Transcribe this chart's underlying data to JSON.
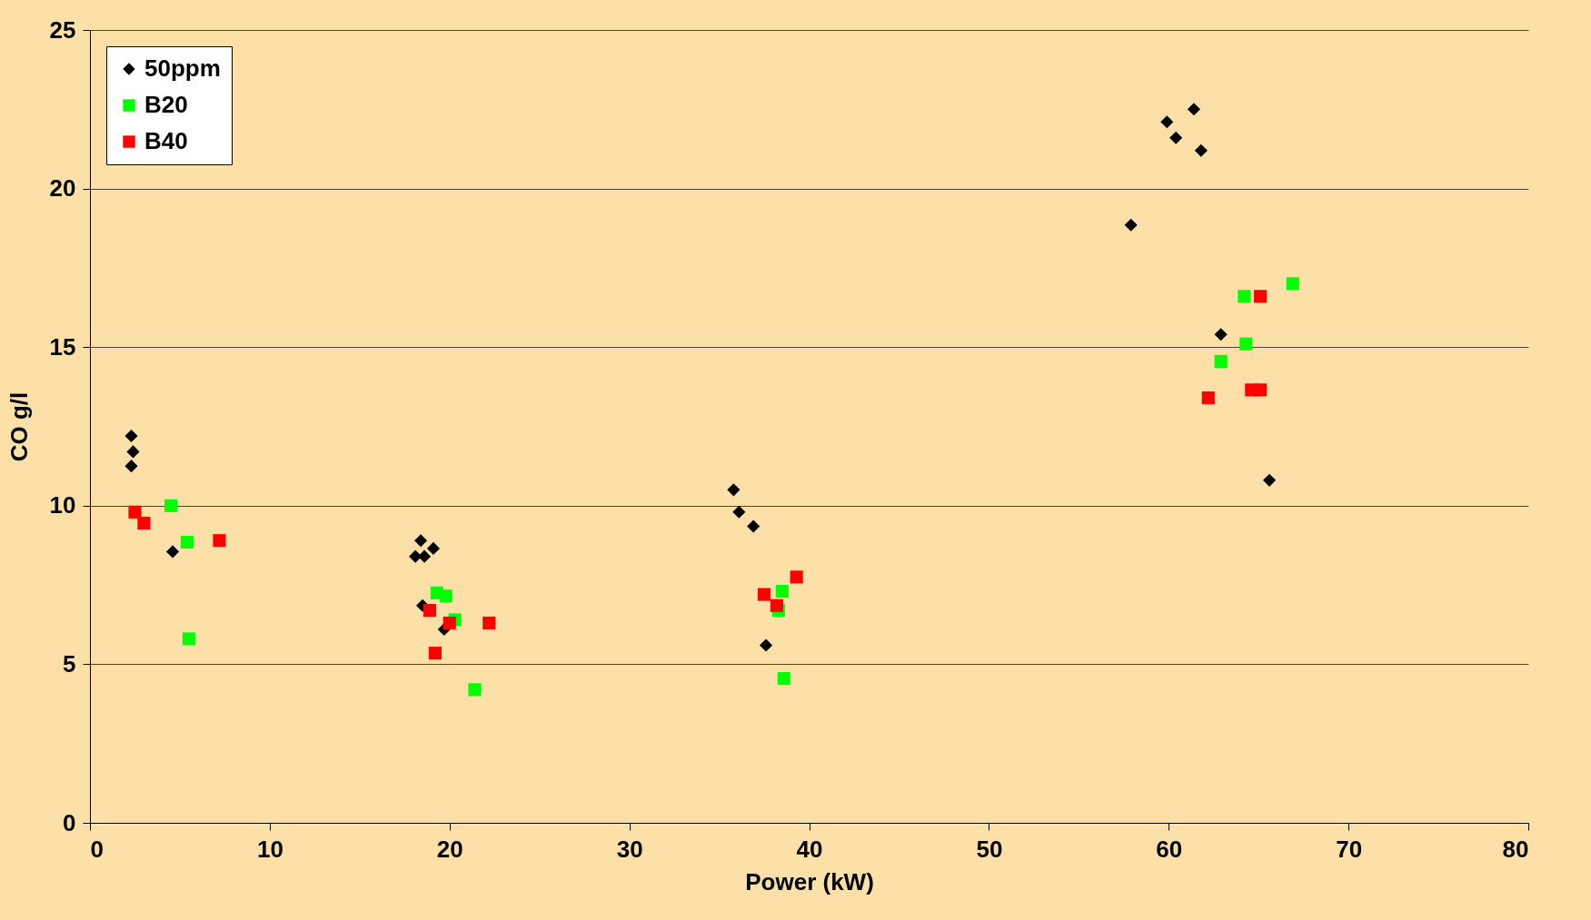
{
  "chart_data": {
    "type": "scatter",
    "xlabel": "Power (kW)",
    "ylabel": "CO g/l",
    "xlim": [
      0,
      80
    ],
    "xticks": [
      0,
      10,
      20,
      30,
      40,
      50,
      60,
      70,
      80
    ],
    "ylim": [
      0,
      25
    ],
    "yticks": [
      0,
      5,
      10,
      15,
      20,
      25
    ],
    "grid": "y",
    "legend": "top left",
    "series": [
      {
        "name": "50ppm",
        "color": "#000000",
        "marker": "diamond",
        "x": [
          2.3,
          2.4,
          2.3,
          4.6,
          18.1,
          18.4,
          18.6,
          19.1,
          18.5,
          19.7,
          35.8,
          36.1,
          36.9,
          37.6,
          57.9,
          59.9,
          60.4,
          61.4,
          61.8,
          62.9,
          65.6
        ],
        "values": [
          12.2,
          11.7,
          11.25,
          8.55,
          8.4,
          8.9,
          8.4,
          8.65,
          6.85,
          6.1,
          10.5,
          9.8,
          9.35,
          5.6,
          18.85,
          22.1,
          21.6,
          22.5,
          21.2,
          15.4,
          10.8
        ]
      },
      {
        "name": "B20",
        "color": "#00ff00",
        "marker": "square",
        "x": [
          4.5,
          5.4,
          5.5,
          19.3,
          19.8,
          20.3,
          21.4,
          38.3,
          38.5,
          38.6,
          62.9,
          64.2,
          64.3,
          66.9
        ],
        "values": [
          10.0,
          8.85,
          5.8,
          7.25,
          7.15,
          6.4,
          4.2,
          6.7,
          7.3,
          4.55,
          14.55,
          16.6,
          15.1,
          17.0
        ]
      },
      {
        "name": "B40",
        "color": "#ff0000",
        "marker": "square",
        "x": [
          2.5,
          3.0,
          7.2,
          18.9,
          19.2,
          20.0,
          22.2,
          37.5,
          38.2,
          39.3,
          62.2,
          64.6,
          65.1,
          65.1
        ],
        "values": [
          9.8,
          9.45,
          8.9,
          6.7,
          5.35,
          6.3,
          6.3,
          7.2,
          6.85,
          7.75,
          13.4,
          13.65,
          13.65,
          16.6
        ]
      }
    ]
  }
}
